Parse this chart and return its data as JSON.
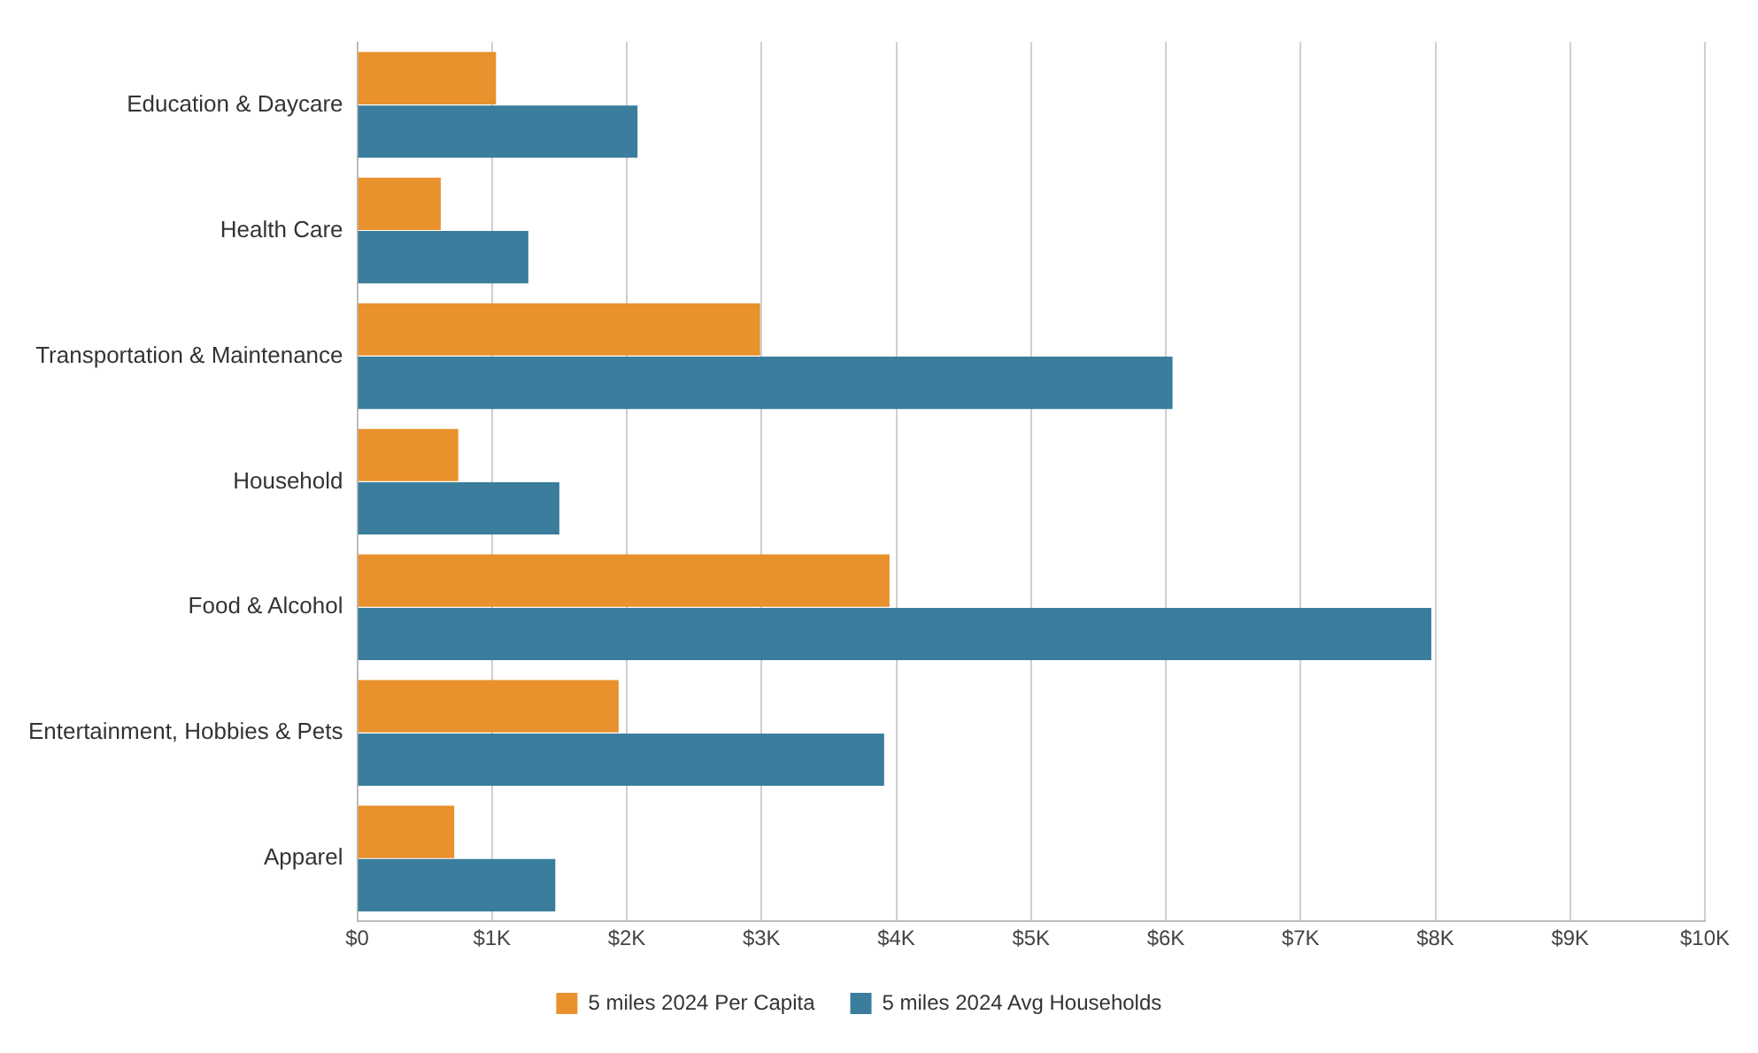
{
  "chart_data": {
    "type": "bar",
    "orientation": "horizontal",
    "categories": [
      "Education & Daycare",
      "Health Care",
      "Transportation & Maintenance",
      "Household",
      "Food & Alcohol",
      "Entertainment, Hobbies & Pets",
      "Apparel"
    ],
    "series": [
      {
        "name": "5 miles 2024 Per Capita",
        "color": "#e8912d",
        "values": [
          1030,
          620,
          2990,
          750,
          3950,
          1940,
          720
        ]
      },
      {
        "name": "5 miles 2024 Avg Households",
        "color": "#3a7d9c",
        "values": [
          2080,
          1270,
          6050,
          1500,
          7970,
          3910,
          1470
        ]
      }
    ],
    "xlim": [
      0,
      10000
    ],
    "xticks": [
      {
        "value": 0,
        "label": "$0"
      },
      {
        "value": 1000,
        "label": "$1K"
      },
      {
        "value": 2000,
        "label": "$2K"
      },
      {
        "value": 3000,
        "label": "$3K"
      },
      {
        "value": 4000,
        "label": "$4K"
      },
      {
        "value": 5000,
        "label": "$5K"
      },
      {
        "value": 6000,
        "label": "$6K"
      },
      {
        "value": 7000,
        "label": "$7K"
      },
      {
        "value": 8000,
        "label": "$8K"
      },
      {
        "value": 9000,
        "label": "$9K"
      },
      {
        "value": 10000,
        "label": "$10K"
      }
    ],
    "grid": "x",
    "legend": "bottom"
  }
}
